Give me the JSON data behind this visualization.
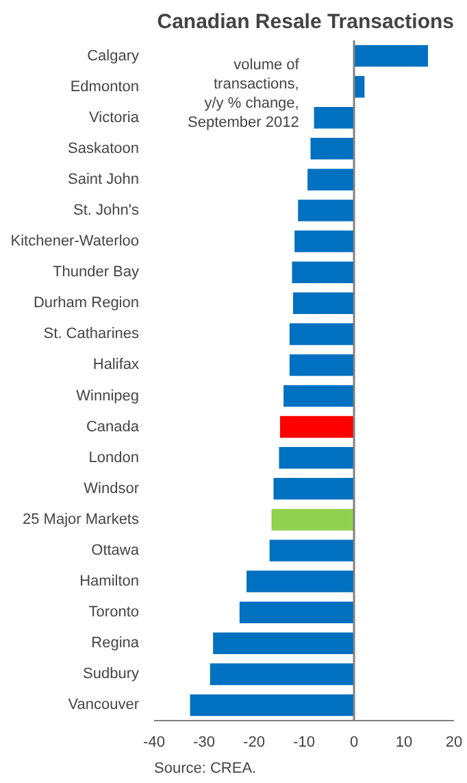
{
  "chart_data": {
    "type": "bar",
    "orientation": "horizontal",
    "title": "Canadian Resale Transactions",
    "categories": [
      "Calgary",
      "Edmonton",
      "Victoria",
      "Saskatoon",
      "Saint John",
      "St. John's",
      "Kitchener-Waterloo",
      "Thunder Bay",
      "Durham Region",
      "St. Catharines",
      "Halifax",
      "Winnipeg",
      "Canada",
      "London",
      "Windsor",
      "25 Major Markets",
      "Ottawa",
      "Hamilton",
      "Toronto",
      "Regina",
      "Sudbury",
      "Vancouver"
    ],
    "values": [
      14.8,
      2.1,
      -8.0,
      -8.7,
      -9.3,
      -11.2,
      -11.9,
      -12.4,
      -12.2,
      -12.9,
      -12.9,
      -14.1,
      -14.8,
      -15.0,
      -16.1,
      -16.5,
      -16.9,
      -21.5,
      -22.9,
      -28.2,
      -28.8,
      -32.8
    ],
    "colors": [
      "#0070c0",
      "#0070c0",
      "#0070c0",
      "#0070c0",
      "#0070c0",
      "#0070c0",
      "#0070c0",
      "#0070c0",
      "#0070c0",
      "#0070c0",
      "#0070c0",
      "#0070c0",
      "#ff0000",
      "#0070c0",
      "#0070c0",
      "#92d050",
      "#0070c0",
      "#0070c0",
      "#0070c0",
      "#0070c0",
      "#0070c0",
      "#0070c0"
    ],
    "xlim": [
      -40,
      20
    ],
    "xticks": [
      -40,
      -30,
      -20,
      -10,
      0,
      10,
      20
    ],
    "grid": false,
    "ref_lines": [
      {
        "axis": "x",
        "value": 0,
        "color": "#808080"
      }
    ],
    "annotations": [
      "volume of\ntransactions,\ny/y % change,\nSeptember 2012",
      "Source: CREA."
    ]
  }
}
